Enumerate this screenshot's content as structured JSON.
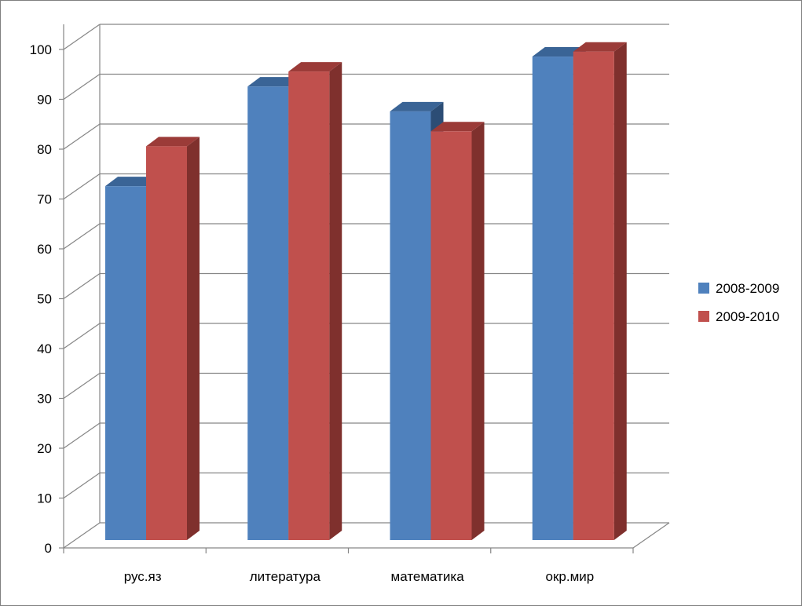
{
  "chart_data": {
    "type": "bar",
    "style": "3d-clustered-column",
    "categories": [
      "рус.яз",
      "литература",
      "математика",
      "окр.мир"
    ],
    "series": [
      {
        "name": "2008-2009",
        "values": [
          71,
          91,
          86,
          97
        ],
        "color": "#4F81BD",
        "top_color": "#3A6496",
        "side_color": "#2C4D75"
      },
      {
        "name": "2009-2010",
        "values": [
          79,
          94,
          82,
          98
        ],
        "color": "#C0504D",
        "top_color": "#9B3B38",
        "side_color": "#7F302D"
      }
    ],
    "yticks": [
      "0",
      "10",
      "20",
      "30",
      "40",
      "50",
      "60",
      "70",
      "80",
      "90",
      "100"
    ],
    "ylim": [
      0,
      100
    ],
    "grid": true,
    "legend": "right",
    "title": "",
    "xlabel": "",
    "ylabel": ""
  }
}
